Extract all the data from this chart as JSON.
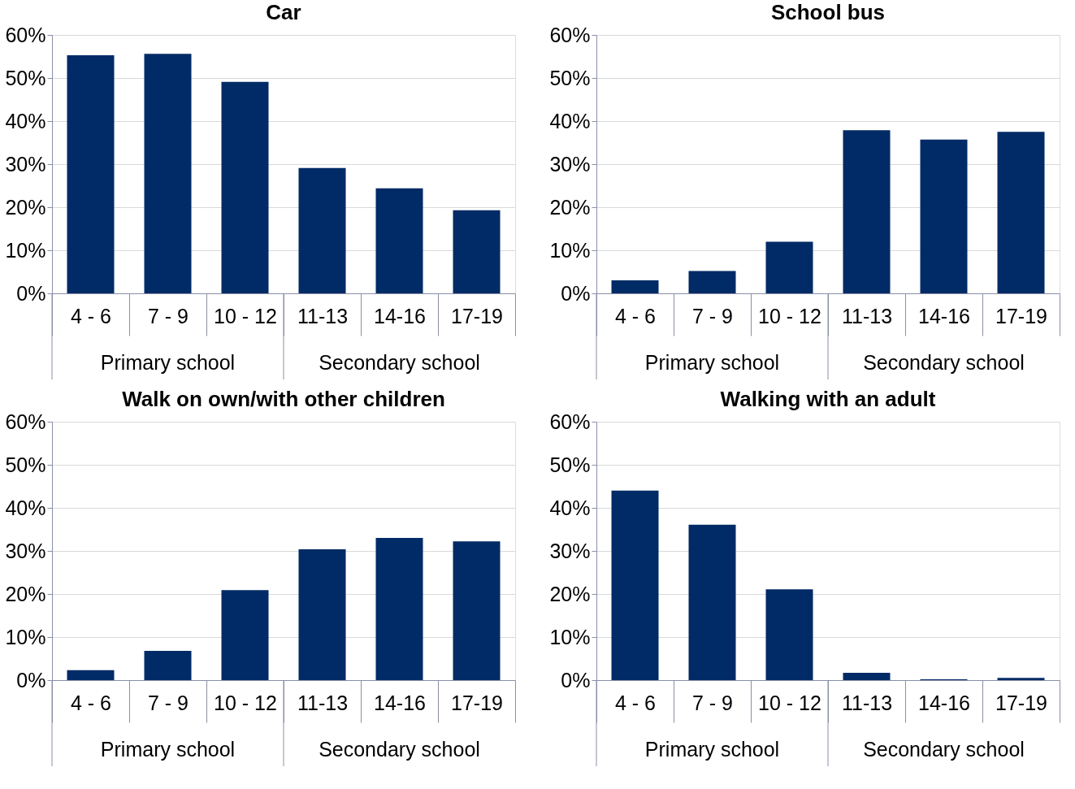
{
  "chart_data": [
    {
      "type": "bar",
      "title": "Car",
      "categories": [
        "4 - 6",
        "7 - 9",
        "10 - 12",
        "11-13",
        "14-16",
        "17-19"
      ],
      "values": [
        55.3,
        55.6,
        49.1,
        29.1,
        24.4,
        19.3
      ],
      "color": "#002b66",
      "ylim": [
        0,
        60
      ],
      "yticks": [
        {
          "value": 0,
          "label": "0%"
        },
        {
          "value": 10,
          "label": "10%"
        },
        {
          "value": 20,
          "label": "20%"
        },
        {
          "value": 30,
          "label": "30%"
        },
        {
          "value": 40,
          "label": "40%"
        },
        {
          "value": 50,
          "label": "50%"
        },
        {
          "value": 60,
          "label": "60%"
        }
      ],
      "grid": "y",
      "annotations": [
        "Primary school",
        "Secondary school"
      ]
    },
    {
      "type": "bar",
      "title": "School bus",
      "categories": [
        "4 - 6",
        "7 - 9",
        "10 - 12",
        "11-13",
        "14-16",
        "17-19"
      ],
      "values": [
        3.0,
        5.2,
        12.0,
        37.9,
        35.7,
        37.5
      ],
      "color": "#002b66",
      "ylim": [
        0,
        60
      ],
      "yticks": [
        {
          "value": 0,
          "label": "0%"
        },
        {
          "value": 10,
          "label": "10%"
        },
        {
          "value": 20,
          "label": "20%"
        },
        {
          "value": 30,
          "label": "30%"
        },
        {
          "value": 40,
          "label": "40%"
        },
        {
          "value": 50,
          "label": "50%"
        },
        {
          "value": 60,
          "label": "60%"
        }
      ],
      "grid": "y",
      "annotations": [
        "Primary school",
        "Secondary school"
      ]
    },
    {
      "type": "bar",
      "title": "Walk on own/with other children",
      "categories": [
        "4 - 6",
        "7 - 9",
        "10 - 12",
        "11-13",
        "14-16",
        "17-19"
      ],
      "values": [
        2.3,
        6.8,
        20.9,
        30.4,
        33.0,
        32.2
      ],
      "color": "#002b66",
      "ylim": [
        0,
        60
      ],
      "yticks": [
        {
          "value": 0,
          "label": "0%"
        },
        {
          "value": 10,
          "label": "10%"
        },
        {
          "value": 20,
          "label": "20%"
        },
        {
          "value": 30,
          "label": "30%"
        },
        {
          "value": 40,
          "label": "40%"
        },
        {
          "value": 50,
          "label": "50%"
        },
        {
          "value": 60,
          "label": "60%"
        }
      ],
      "grid": "y",
      "annotations": [
        "Primary school",
        "Secondary school"
      ]
    },
    {
      "type": "bar",
      "title": "Walking with an adult",
      "categories": [
        "4 - 6",
        "7 - 9",
        "10 - 12",
        "11-13",
        "14-16",
        "17-19"
      ],
      "values": [
        44.0,
        36.1,
        21.1,
        1.7,
        0.2,
        0.5
      ],
      "color": "#002b66",
      "ylim": [
        0,
        60
      ],
      "yticks": [
        {
          "value": 0,
          "label": "0%"
        },
        {
          "value": 10,
          "label": "10%"
        },
        {
          "value": 20,
          "label": "20%"
        },
        {
          "value": 30,
          "label": "30%"
        },
        {
          "value": 40,
          "label": "40%"
        },
        {
          "value": 50,
          "label": "50%"
        },
        {
          "value": 60,
          "label": "60%"
        }
      ],
      "grid": "y",
      "annotations": [
        "Primary school",
        "Secondary school"
      ]
    }
  ]
}
